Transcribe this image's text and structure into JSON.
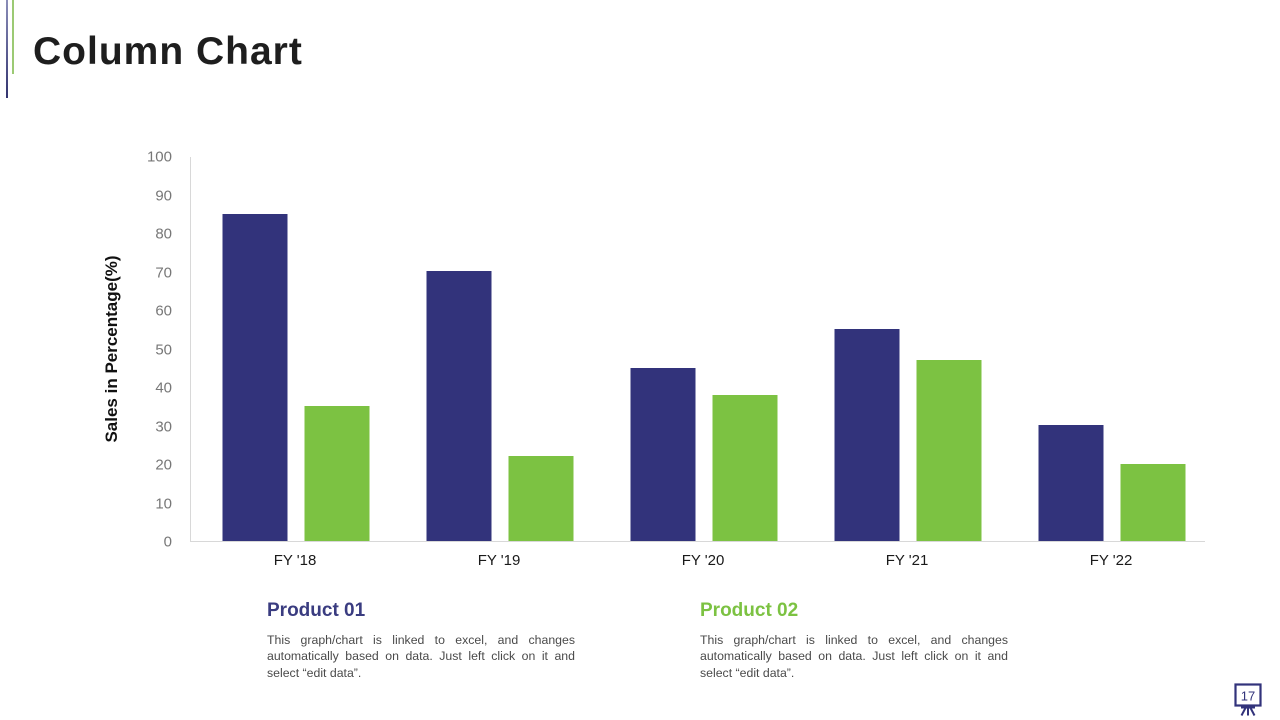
{
  "slide": {
    "title": "Column Chart",
    "page_number": "17",
    "accent_colors": {
      "blue_line": "#33346f",
      "green_line": "#9cca74"
    }
  },
  "chart_data": {
    "type": "bar",
    "title": "",
    "categories": [
      "FY '18",
      "FY '19",
      "FY '20",
      "FY '21",
      "FY '22"
    ],
    "series": [
      {
        "name": "Product 01",
        "color": "#32337b",
        "values": [
          85,
          70,
          45,
          55,
          30
        ]
      },
      {
        "name": "Product 02",
        "color": "#7cc242",
        "values": [
          35,
          22,
          38,
          47,
          20
        ]
      }
    ],
    "xlabel": "",
    "ylabel": "Sales in Percentage(%)",
    "ylim": [
      0,
      100
    ],
    "ytick_step": 10,
    "grid": false,
    "legend_position": "bottom"
  },
  "legend": {
    "items": [
      {
        "label": "Product 01",
        "color": "#3a3c80",
        "description": "This graph/chart is linked to excel, and changes automatically based on data. Just left click on it and select “edit data”."
      },
      {
        "label": "Product 02",
        "color": "#7cc242",
        "description": "This graph/chart is linked to excel, and changes automatically based on data. Just left click on it and select “edit data”."
      }
    ]
  }
}
